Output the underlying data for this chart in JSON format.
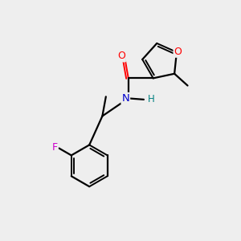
{
  "background_color": "#eeeeee",
  "bond_color": "#000000",
  "atom_colors": {
    "O_carbonyl": "#ff0000",
    "O_furan": "#ff0000",
    "N": "#0000cc",
    "F": "#cc00cc",
    "H": "#008080",
    "C": "#000000"
  },
  "lw": 1.6,
  "lw2": 1.4
}
